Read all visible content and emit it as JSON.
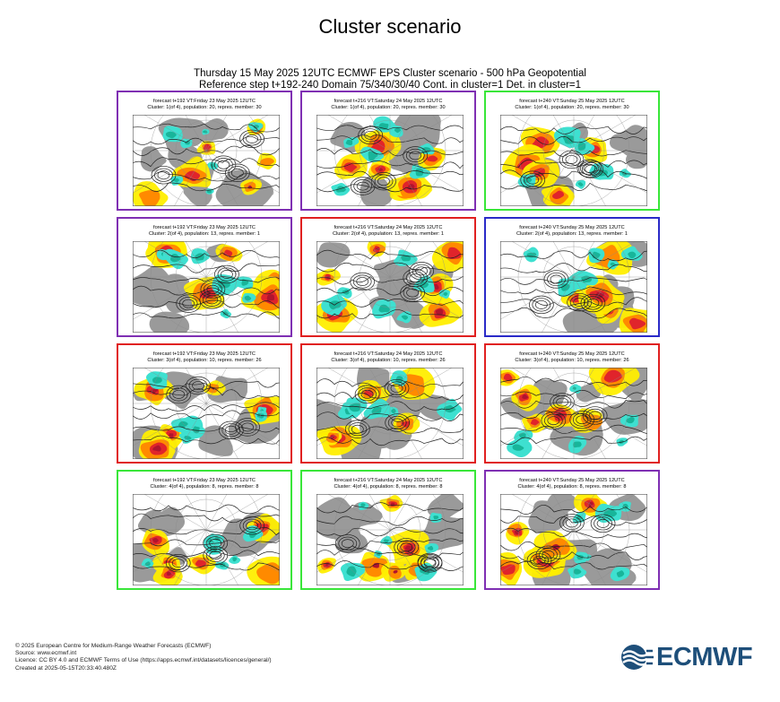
{
  "page": {
    "title": "Cluster scenario",
    "subtitle_line1": "Thursday 15 May 2025 12UTC ECMWF EPS Cluster scenario - 500 hPa Geopotential",
    "subtitle_line2": "Reference step t+192-240 Domain 75/340/30/40 Cont. in cluster=1 Det. in cluster=1"
  },
  "colors": {
    "border_purple": "#7f2fb3",
    "border_red": "#e02020",
    "border_green": "#39e639",
    "border_blue": "#2a2ac8",
    "land_grey": "#9a9a9a",
    "anomaly_yellow": "#ffee00",
    "anomaly_orange": "#ff8a00",
    "anomaly_red": "#e0242b",
    "anomaly_darkred": "#b0142e",
    "anomaly_cyan": "#3ee0d0",
    "anomaly_teal": "#18b59a",
    "contour": "#222222"
  },
  "panels": [
    {
      "title": "forecast t+192 VT:Friday 23 May 2025 12UTC",
      "subtitle": "Cluster: 1(of 4), population: 20, repres. member: 30",
      "border": "purple",
      "variant": 0
    },
    {
      "title": "forecast t+216 VT:Saturday 24 May 2025 12UTC",
      "subtitle": "Cluster: 1(of 4), population: 20, repres. member: 30",
      "border": "purple",
      "variant": 1
    },
    {
      "title": "forecast t+240 VT:Sunday 25 May 2025 12UTC",
      "subtitle": "Cluster: 1(of 4), population: 20, repres. member: 30",
      "border": "green",
      "variant": 2
    },
    {
      "title": "forecast t+192 VT:Friday 23 May 2025 12UTC",
      "subtitle": "Cluster: 2(of 4), population: 13, repres. member: 1",
      "border": "purple",
      "variant": 3
    },
    {
      "title": "forecast t+216 VT:Saturday 24 May 2025 12UTC",
      "subtitle": "Cluster: 2(of 4), population: 13, repres. member: 1",
      "border": "red",
      "variant": 4
    },
    {
      "title": "forecast t+240 VT:Sunday 25 May 2025 12UTC",
      "subtitle": "Cluster: 2(of 4), population: 13, repres. member: 1",
      "border": "blue",
      "variant": 5
    },
    {
      "title": "forecast t+192 VT:Friday 23 May 2025 12UTC",
      "subtitle": "Cluster: 3(of 4), population: 10, repres. member: 26",
      "border": "red",
      "variant": 6
    },
    {
      "title": "forecast t+216 VT:Saturday 24 May 2025 12UTC",
      "subtitle": "Cluster: 3(of 4), population: 10, repres. member: 26",
      "border": "red",
      "variant": 7
    },
    {
      "title": "forecast t+240 VT:Sunday 25 May 2025 12UTC",
      "subtitle": "Cluster: 3(of 4), population: 10, repres. member: 26",
      "border": "red",
      "variant": 8
    },
    {
      "title": "forecast t+192 VT:Friday 23 May 2025 12UTC",
      "subtitle": "Cluster: 4(of 4), population: 8, repres. member: 8",
      "border": "green",
      "variant": 9
    },
    {
      "title": "forecast t+216 VT:Saturday 24 May 2025 12UTC",
      "subtitle": "Cluster: 4(of 4), population: 8, repres. member: 8",
      "border": "green",
      "variant": 10
    },
    {
      "title": "forecast t+240 VT:Sunday 25 May 2025 12UTC",
      "subtitle": "Cluster: 4(of 4), population: 8, repres. member: 8",
      "border": "purple",
      "variant": 11
    }
  ],
  "footer": {
    "line1": "© 2025 European Centre for Medium-Range Weather Forecasts (ECMWF)",
    "line2": "Source: www.ecmwf.int",
    "line3": "Licence: CC BY 4.0 and ECMWF Terms of Use (https://apps.ecmwf.int/datasets/licences/general/)",
    "line4": "Created at 2025-05-15T20:33:40.480Z"
  },
  "logo": {
    "text": "ECMWF",
    "icon": "ecmwf-logo-icon"
  }
}
